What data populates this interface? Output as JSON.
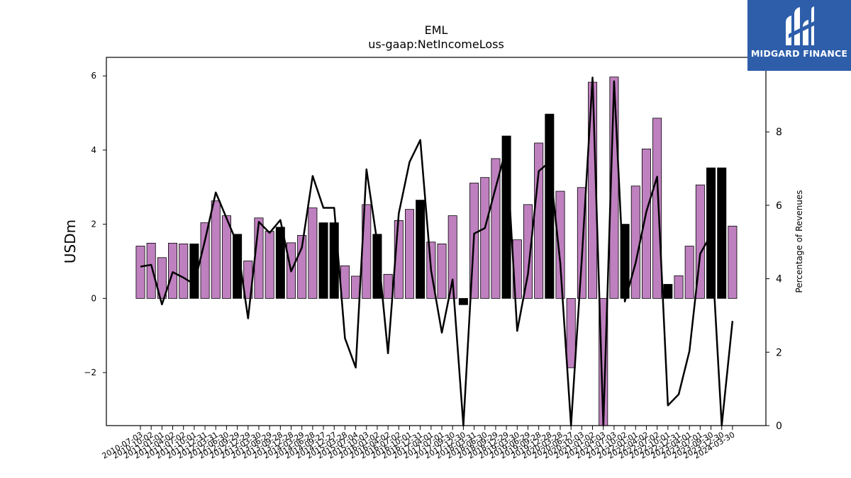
{
  "chart_data": {
    "type": "bar",
    "title": "EML",
    "subtitle": "us-gaap:NetIncomeLoss",
    "ylabel": "USDm",
    "y2label": "Percentage of Revenues",
    "ylim": [
      -3.43,
      6.5
    ],
    "y2lim": [
      0,
      10.03
    ],
    "yticks": [
      -2,
      0,
      2,
      4,
      6
    ],
    "y2ticks": [
      0,
      2,
      4,
      6,
      8,
      10
    ],
    "categories": [
      "2010-07-03",
      "2010-10-02",
      "2011-01-01",
      "2011-04-02",
      "2011-07-02",
      "2011-10-01",
      "2011-12-31",
      "2012-03-31",
      "2012-06-30",
      "2012-09-29",
      "2012-12-29",
      "2013-03-30",
      "2013-06-29",
      "2013-09-28",
      "2013-12-28",
      "2014-03-29",
      "2014-06-28",
      "2014-09-27",
      "2014-12-27",
      "2015-03-28",
      "2015-07-04",
      "2015-10-03",
      "2016-01-02",
      "2016-04-02",
      "2016-07-02",
      "2016-10-01",
      "2016-12-31",
      "2017-04-01",
      "2017-07-01",
      "2017-09-30",
      "2017-12-30",
      "2018-03-31",
      "2018-06-30",
      "2018-09-29",
      "2018-12-29",
      "2019-03-30",
      "2019-06-29",
      "2019-09-28",
      "2019-12-28",
      "2020-03-28",
      "2020-06-27",
      "2020-10-03",
      "2021-01-02",
      "2021-04-03",
      "2021-07-03",
      "2021-10-02",
      "2022-01-01",
      "2022-04-02",
      "2022-07-02",
      "2022-10-01",
      "2022-12-31",
      "2023-04-01",
      "2023-07-01",
      "2023-09-30",
      "2023-12-30",
      "2024-03-30"
    ],
    "tick_labels": [
      "2010-07-03",
      "2010-10-02",
      "2011-01-01",
      "2011-04-02",
      "2011-07-02",
      "2011-10-01",
      "2011-12-31",
      "2012-03-31",
      "2012-06-30",
      "2012-09-29",
      "2012-12-29",
      "2013-03-30",
      "2013-06-29",
      "2013-09-28",
      "2013-12-28",
      "2014-03-29",
      "2014-06-28",
      "2014-09-27",
      "2014-12-27",
      "2015-03-28",
      "2015-07-04",
      "2015-10-03",
      "2016-01-02",
      "2016-04-02",
      "2016-07-02",
      "2016-10-01",
      "2016-12-31",
      "2017-04-01",
      "2017-07-01",
      "2017-09-30",
      "2017-12-30",
      "2018-03-31",
      "2018-06-30",
      "2018-09-29",
      "2018-12-29",
      "2019-03-30",
      "2019-06-29",
      "2019-09-28",
      "2019-12-28",
      "2020-03-28",
      "2020-06-27",
      "2020-10-03",
      "2021-01-02",
      "2021-04-03",
      "2021-07-03",
      "2021-10-02",
      "2022-01-01",
      "2022-04-02",
      "2022-07-02",
      "2022-10-01",
      "2022-12-31",
      "2023-04-01",
      "2023-07-01",
      "2023-09-30",
      "2023-12-30",
      "2024-03-30"
    ],
    "series": [
      {
        "kind": "bar",
        "values": [
          1.41,
          1.49,
          1.1,
          1.49,
          1.47,
          1.47,
          2.04,
          2.63,
          2.23,
          1.73,
          1.01,
          2.17,
          1.81,
          1.92,
          1.5,
          1.7,
          2.44,
          2.04,
          2.04,
          0.88,
          0.6,
          2.53,
          1.73,
          0.65,
          2.1,
          2.4,
          2.65,
          1.52,
          1.47,
          2.23,
          -0.17,
          3.11,
          3.26,
          3.77,
          4.38,
          1.58,
          2.53,
          4.19,
          4.97,
          2.89,
          -1.87,
          2.99,
          5.83,
          -3.43,
          5.97,
          2.0,
          3.03,
          4.03,
          4.86,
          0.38,
          0.61,
          1.41,
          3.06,
          3.52,
          3.52,
          1.95
        ],
        "highlight": [
          0,
          0,
          0,
          0,
          0,
          1,
          0,
          0,
          0,
          1,
          0,
          0,
          0,
          1,
          0,
          0,
          0,
          1,
          1,
          0,
          0,
          0,
          1,
          0,
          0,
          0,
          1,
          0,
          0,
          0,
          1,
          0,
          0,
          0,
          1,
          0,
          0,
          0,
          1,
          0,
          0,
          0,
          0,
          0,
          0,
          1,
          0,
          0,
          0,
          1,
          0,
          0,
          0,
          1,
          1,
          0
        ],
        "color": "#bf80bf",
        "highlight_color": "#000000"
      },
      {
        "kind": "line",
        "axis": "secondary",
        "values": [
          4.33,
          4.38,
          3.3,
          4.18,
          4.03,
          3.85,
          5.05,
          6.35,
          5.65,
          4.95,
          2.92,
          5.55,
          5.25,
          5.6,
          4.2,
          4.85,
          6.8,
          5.93,
          5.93,
          2.38,
          1.58,
          6.98,
          4.98,
          1.97,
          5.78,
          7.18,
          7.78,
          4.23,
          2.53,
          3.98,
          0.0,
          5.23,
          5.38,
          6.48,
          7.58,
          2.58,
          4.13,
          6.93,
          7.18,
          4.43,
          0.0,
          4.53,
          9.48,
          0.0,
          9.38,
          3.38,
          4.43,
          5.83,
          6.78,
          0.55,
          0.85,
          2.03,
          4.68,
          5.2,
          0.0,
          2.85
        ],
        "color": "#000000"
      }
    ],
    "grid": false,
    "legend": "none"
  },
  "brand": {
    "name": "MIDGARD FINANCE",
    "background": "#2e5eaa",
    "text_color": "#ffffff"
  }
}
